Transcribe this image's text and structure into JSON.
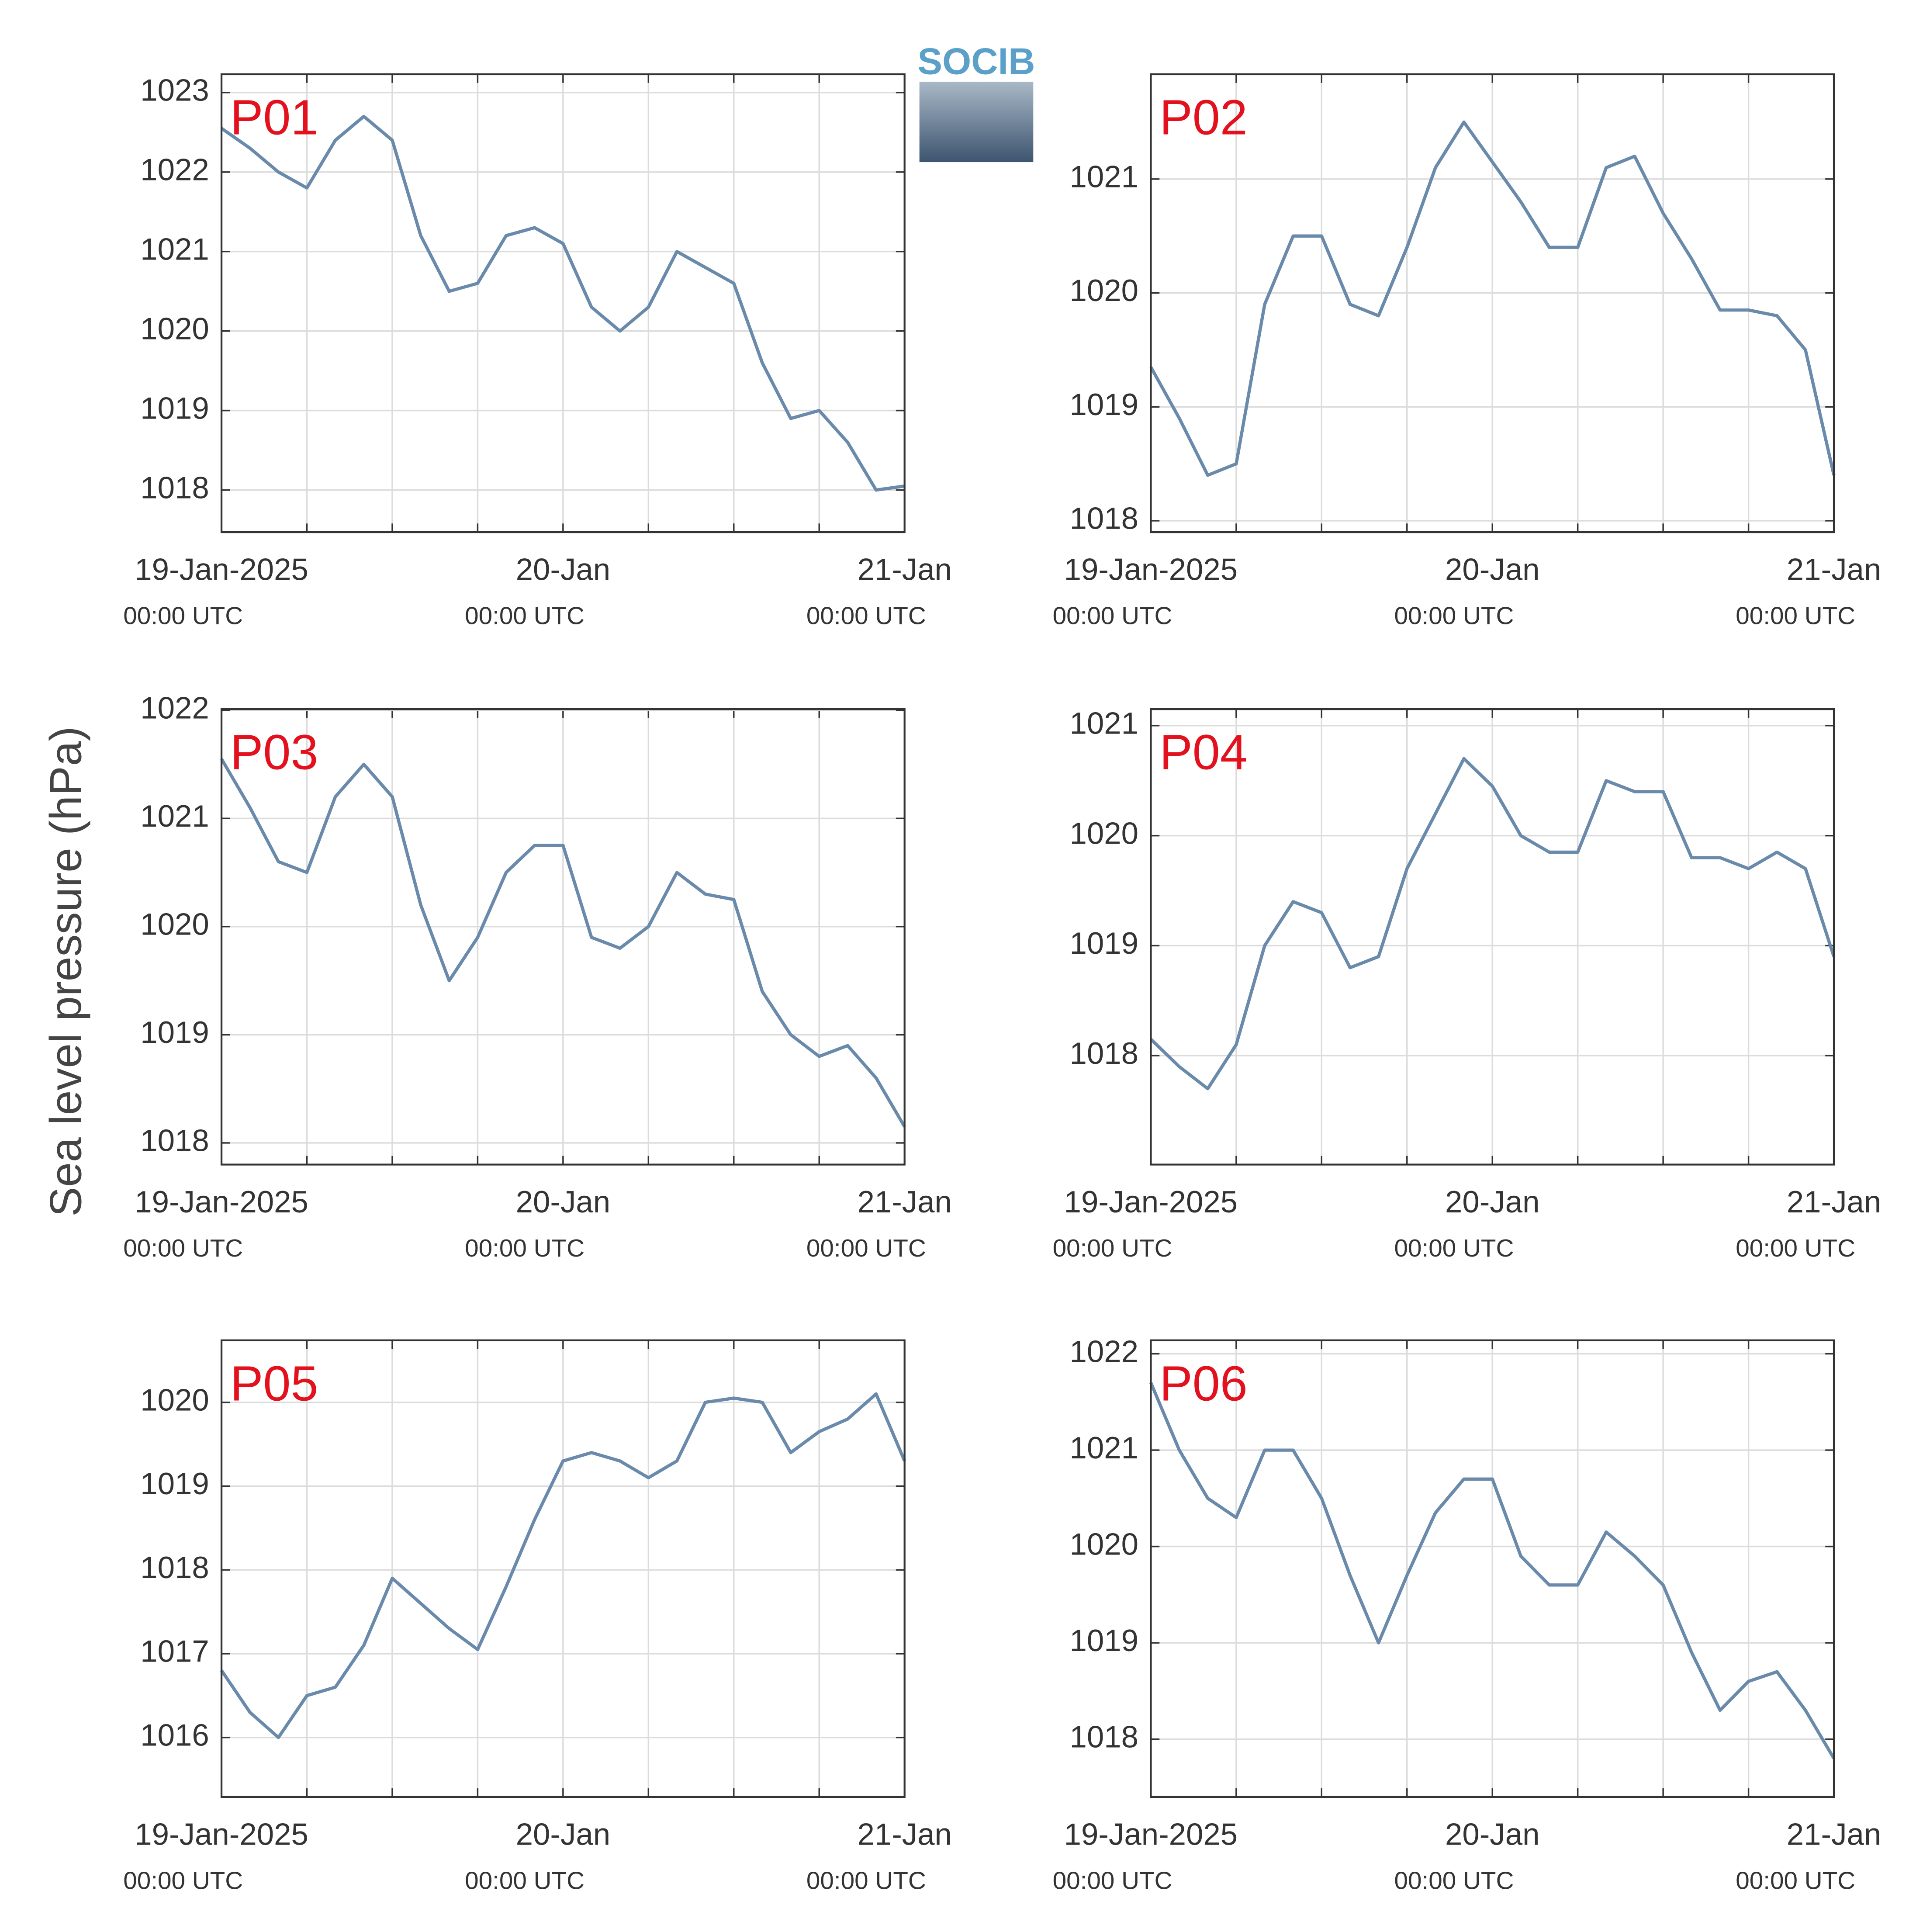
{
  "y_label": "Sea level pressure (hPa)",
  "logo": "SOCIB",
  "chart_data": [
    {
      "type": "line",
      "title": "P01",
      "color": "#6a8aab",
      "x": [
        "2025-01-19T00:00",
        "2025-01-19T02:00",
        "2025-01-19T04:00",
        "2025-01-19T06:00",
        "2025-01-19T08:00",
        "2025-01-19T10:00",
        "2025-01-19T12:00",
        "2025-01-19T14:00",
        "2025-01-19T16:00",
        "2025-01-19T18:00",
        "2025-01-19T20:00",
        "2025-01-19T22:00",
        "2025-01-20T00:00",
        "2025-01-20T02:00",
        "2025-01-20T04:00",
        "2025-01-20T06:00",
        "2025-01-20T08:00",
        "2025-01-20T10:00",
        "2025-01-20T12:00",
        "2025-01-20T14:00",
        "2025-01-20T16:00",
        "2025-01-20T18:00",
        "2025-01-20T20:00",
        "2025-01-20T22:00",
        "2025-01-21T00:00"
      ],
      "values": [
        1022.55,
        1022.3,
        1022.0,
        1021.8,
        1022.4,
        1022.7,
        1022.4,
        1021.2,
        1020.5,
        1020.6,
        1021.2,
        1021.3,
        1021.1,
        1020.3,
        1020.0,
        1020.3,
        1021.0,
        1020.8,
        1020.6,
        1019.6,
        1018.9,
        1019.0,
        1018.6,
        1018.0,
        1018.05
      ],
      "xlim": [
        "2025-01-19T00:00",
        "2025-01-21T00:00"
      ],
      "xticks": [
        {
          "value": "2025-01-19T00:00",
          "label": "19-Jan-2025",
          "sublabel": "00:00 UTC"
        },
        {
          "value": "2025-01-19T06:00"
        },
        {
          "value": "2025-01-19T12:00"
        },
        {
          "value": "2025-01-19T18:00"
        },
        {
          "value": "2025-01-20T00:00",
          "label": "20-Jan",
          "sublabel": "00:00 UTC"
        },
        {
          "value": "2025-01-20T06:00"
        },
        {
          "value": "2025-01-20T12:00"
        },
        {
          "value": "2025-01-20T18:00"
        },
        {
          "value": "2025-01-21T00:00",
          "label": "21-Jan",
          "sublabel": "00:00 UTC"
        }
      ],
      "ylim": [
        1017.47,
        1023.23
      ],
      "yticks": [
        1018,
        1019,
        1020,
        1021,
        1022,
        1023
      ],
      "grid": true
    },
    {
      "type": "line",
      "title": "P02",
      "color": "#6a8aab",
      "x": [
        "2025-01-19T00:00",
        "2025-01-19T02:00",
        "2025-01-19T04:00",
        "2025-01-19T06:00",
        "2025-01-19T08:00",
        "2025-01-19T10:00",
        "2025-01-19T12:00",
        "2025-01-19T14:00",
        "2025-01-19T16:00",
        "2025-01-19T18:00",
        "2025-01-19T20:00",
        "2025-01-19T22:00",
        "2025-01-20T00:00",
        "2025-01-20T02:00",
        "2025-01-20T04:00",
        "2025-01-20T06:00",
        "2025-01-20T08:00",
        "2025-01-20T10:00",
        "2025-01-20T12:00",
        "2025-01-20T14:00",
        "2025-01-20T16:00",
        "2025-01-20T18:00",
        "2025-01-20T20:00",
        "2025-01-20T22:00",
        "2025-01-21T00:00"
      ],
      "values": [
        1019.35,
        1018.9,
        1018.4,
        1018.5,
        1019.9,
        1020.5,
        1020.5,
        1019.9,
        1019.8,
        1020.4,
        1021.1,
        1021.5,
        1021.15,
        1020.8,
        1020.4,
        1020.4,
        1021.1,
        1021.2,
        1020.7,
        1020.3,
        1019.85,
        1019.85,
        1019.8,
        1019.5,
        1018.4
      ],
      "xlim": [
        "2025-01-19T00:00",
        "2025-01-21T00:00"
      ],
      "xticks": [
        {
          "value": "2025-01-19T00:00",
          "label": "19-Jan-2025",
          "sublabel": "00:00 UTC"
        },
        {
          "value": "2025-01-19T06:00"
        },
        {
          "value": "2025-01-19T12:00"
        },
        {
          "value": "2025-01-19T18:00"
        },
        {
          "value": "2025-01-20T00:00",
          "label": "20-Jan",
          "sublabel": "00:00 UTC"
        },
        {
          "value": "2025-01-20T06:00"
        },
        {
          "value": "2025-01-20T12:00"
        },
        {
          "value": "2025-01-20T18:00"
        },
        {
          "value": "2025-01-21T00:00",
          "label": "21-Jan",
          "sublabel": "00:00 UTC"
        }
      ],
      "ylim": [
        1017.9,
        1021.92
      ],
      "yticks": [
        1018,
        1019,
        1020,
        1021
      ],
      "grid": true
    },
    {
      "type": "line",
      "title": "P03",
      "color": "#6a8aab",
      "x": [
        "2025-01-19T00:00",
        "2025-01-19T02:00",
        "2025-01-19T04:00",
        "2025-01-19T06:00",
        "2025-01-19T08:00",
        "2025-01-19T10:00",
        "2025-01-19T12:00",
        "2025-01-19T14:00",
        "2025-01-19T16:00",
        "2025-01-19T18:00",
        "2025-01-19T20:00",
        "2025-01-19T22:00",
        "2025-01-20T00:00",
        "2025-01-20T02:00",
        "2025-01-20T04:00",
        "2025-01-20T06:00",
        "2025-01-20T08:00",
        "2025-01-20T10:00",
        "2025-01-20T12:00",
        "2025-01-20T14:00",
        "2025-01-20T16:00",
        "2025-01-20T18:00",
        "2025-01-20T20:00",
        "2025-01-20T22:00",
        "2025-01-21T00:00"
      ],
      "values": [
        1021.55,
        1021.1,
        1020.6,
        1020.5,
        1021.2,
        1021.5,
        1021.2,
        1020.2,
        1019.5,
        1019.9,
        1020.5,
        1020.75,
        1020.75,
        1019.9,
        1019.8,
        1020.0,
        1020.5,
        1020.3,
        1020.25,
        1019.4,
        1019.0,
        1018.8,
        1018.9,
        1018.6,
        1018.15
      ],
      "xlim": [
        "2025-01-19T00:00",
        "2025-01-21T00:00"
      ],
      "xticks": [
        {
          "value": "2025-01-19T00:00",
          "label": "19-Jan-2025",
          "sublabel": "00:00 UTC"
        },
        {
          "value": "2025-01-19T06:00"
        },
        {
          "value": "2025-01-19T12:00"
        },
        {
          "value": "2025-01-19T18:00"
        },
        {
          "value": "2025-01-20T00:00",
          "label": "20-Jan",
          "sublabel": "00:00 UTC"
        },
        {
          "value": "2025-01-20T06:00"
        },
        {
          "value": "2025-01-20T12:00"
        },
        {
          "value": "2025-01-20T18:00"
        },
        {
          "value": "2025-01-21T00:00",
          "label": "21-Jan",
          "sublabel": "00:00 UTC"
        }
      ],
      "ylim": [
        1017.8,
        1022.01
      ],
      "yticks": [
        1018,
        1019,
        1020,
        1021,
        1022
      ],
      "grid": true
    },
    {
      "type": "line",
      "title": "P04",
      "color": "#6a8aab",
      "x": [
        "2025-01-19T00:00",
        "2025-01-19T02:00",
        "2025-01-19T04:00",
        "2025-01-19T06:00",
        "2025-01-19T08:00",
        "2025-01-19T10:00",
        "2025-01-19T12:00",
        "2025-01-19T14:00",
        "2025-01-19T16:00",
        "2025-01-19T18:00",
        "2025-01-19T20:00",
        "2025-01-19T22:00",
        "2025-01-20T00:00",
        "2025-01-20T02:00",
        "2025-01-20T04:00",
        "2025-01-20T06:00",
        "2025-01-20T08:00",
        "2025-01-20T10:00",
        "2025-01-20T12:00",
        "2025-01-20T14:00",
        "2025-01-20T16:00",
        "2025-01-20T18:00",
        "2025-01-20T20:00",
        "2025-01-20T22:00",
        "2025-01-21T00:00"
      ],
      "values": [
        1018.15,
        1017.9,
        1017.7,
        1018.1,
        1019.0,
        1019.4,
        1019.3,
        1018.8,
        1018.9,
        1019.7,
        1020.2,
        1020.7,
        1020.45,
        1020.0,
        1019.85,
        1019.85,
        1020.5,
        1020.4,
        1020.4,
        1019.8,
        1019.8,
        1019.7,
        1019.85,
        1019.7,
        1018.9
      ],
      "xlim": [
        "2025-01-19T00:00",
        "2025-01-21T00:00"
      ],
      "xticks": [
        {
          "value": "2025-01-19T00:00",
          "label": "19-Jan-2025",
          "sublabel": "00:00 UTC"
        },
        {
          "value": "2025-01-19T06:00"
        },
        {
          "value": "2025-01-19T12:00"
        },
        {
          "value": "2025-01-19T18:00"
        },
        {
          "value": "2025-01-20T00:00",
          "label": "20-Jan",
          "sublabel": "00:00 UTC"
        },
        {
          "value": "2025-01-20T06:00"
        },
        {
          "value": "2025-01-20T12:00"
        },
        {
          "value": "2025-01-20T18:00"
        },
        {
          "value": "2025-01-21T00:00",
          "label": "21-Jan",
          "sublabel": "00:00 UTC"
        }
      ],
      "ylim": [
        1017.01,
        1021.15
      ],
      "yticks": [
        1018,
        1019,
        1020,
        1021
      ],
      "grid": true
    },
    {
      "type": "line",
      "title": "P05",
      "color": "#6a8aab",
      "x": [
        "2025-01-19T00:00",
        "2025-01-19T02:00",
        "2025-01-19T04:00",
        "2025-01-19T06:00",
        "2025-01-19T08:00",
        "2025-01-19T10:00",
        "2025-01-19T12:00",
        "2025-01-19T14:00",
        "2025-01-19T16:00",
        "2025-01-19T18:00",
        "2025-01-19T20:00",
        "2025-01-19T22:00",
        "2025-01-20T00:00",
        "2025-01-20T02:00",
        "2025-01-20T04:00",
        "2025-01-20T06:00",
        "2025-01-20T08:00",
        "2025-01-20T10:00",
        "2025-01-20T12:00",
        "2025-01-20T14:00",
        "2025-01-20T16:00",
        "2025-01-20T18:00",
        "2025-01-20T20:00",
        "2025-01-20T22:00",
        "2025-01-21T00:00"
      ],
      "values": [
        1016.8,
        1016.3,
        1016.0,
        1016.5,
        1016.6,
        1017.1,
        1017.9,
        1017.6,
        1017.3,
        1017.05,
        1017.8,
        1018.6,
        1019.3,
        1019.4,
        1019.3,
        1019.1,
        1019.3,
        1020.0,
        1020.05,
        1020.0,
        1019.4,
        1019.65,
        1019.8,
        1020.1,
        1019.3
      ],
      "xlim": [
        "2025-01-19T00:00",
        "2025-01-21T00:00"
      ],
      "xticks": [
        {
          "value": "2025-01-19T00:00",
          "label": "19-Jan-2025",
          "sublabel": "00:00 UTC"
        },
        {
          "value": "2025-01-19T06:00"
        },
        {
          "value": "2025-01-19T12:00"
        },
        {
          "value": "2025-01-19T18:00"
        },
        {
          "value": "2025-01-20T00:00",
          "label": "20-Jan",
          "sublabel": "00:00 UTC"
        },
        {
          "value": "2025-01-20T06:00"
        },
        {
          "value": "2025-01-20T12:00"
        },
        {
          "value": "2025-01-20T18:00"
        },
        {
          "value": "2025-01-21T00:00",
          "label": "21-Jan",
          "sublabel": "00:00 UTC"
        }
      ],
      "ylim": [
        1015.29,
        1020.74
      ],
      "yticks": [
        1016,
        1017,
        1018,
        1019,
        1020
      ],
      "grid": true
    },
    {
      "type": "line",
      "title": "P06",
      "color": "#6a8aab",
      "x": [
        "2025-01-19T00:00",
        "2025-01-19T02:00",
        "2025-01-19T04:00",
        "2025-01-19T06:00",
        "2025-01-19T08:00",
        "2025-01-19T10:00",
        "2025-01-19T12:00",
        "2025-01-19T14:00",
        "2025-01-19T16:00",
        "2025-01-19T18:00",
        "2025-01-19T20:00",
        "2025-01-19T22:00",
        "2025-01-20T00:00",
        "2025-01-20T02:00",
        "2025-01-20T04:00",
        "2025-01-20T06:00",
        "2025-01-20T08:00",
        "2025-01-20T10:00",
        "2025-01-20T12:00",
        "2025-01-20T14:00",
        "2025-01-20T16:00",
        "2025-01-20T18:00",
        "2025-01-20T20:00",
        "2025-01-20T22:00",
        "2025-01-21T00:00"
      ],
      "values": [
        1021.7,
        1021.0,
        1020.5,
        1020.3,
        1021.0,
        1021.0,
        1020.5,
        1019.7,
        1019.0,
        1019.7,
        1020.35,
        1020.7,
        1020.7,
        1019.9,
        1019.6,
        1019.6,
        1020.15,
        1019.9,
        1019.6,
        1018.9,
        1018.3,
        1018.6,
        1018.7,
        1018.3,
        1017.8
      ],
      "xlim": [
        "2025-01-19T00:00",
        "2025-01-21T00:00"
      ],
      "xticks": [
        {
          "value": "2025-01-19T00:00",
          "label": "19-Jan-2025",
          "sublabel": "00:00 UTC"
        },
        {
          "value": "2025-01-19T06:00"
        },
        {
          "value": "2025-01-19T12:00"
        },
        {
          "value": "2025-01-19T18:00"
        },
        {
          "value": "2025-01-20T00:00",
          "label": "20-Jan",
          "sublabel": "00:00 UTC"
        },
        {
          "value": "2025-01-20T06:00"
        },
        {
          "value": "2025-01-20T12:00"
        },
        {
          "value": "2025-01-20T18:00"
        },
        {
          "value": "2025-01-21T00:00",
          "label": "21-Jan",
          "sublabel": "00:00 UTC"
        }
      ],
      "ylim": [
        1017.4,
        1022.14
      ],
      "yticks": [
        1018,
        1019,
        1020,
        1021,
        1022
      ],
      "grid": true
    }
  ]
}
